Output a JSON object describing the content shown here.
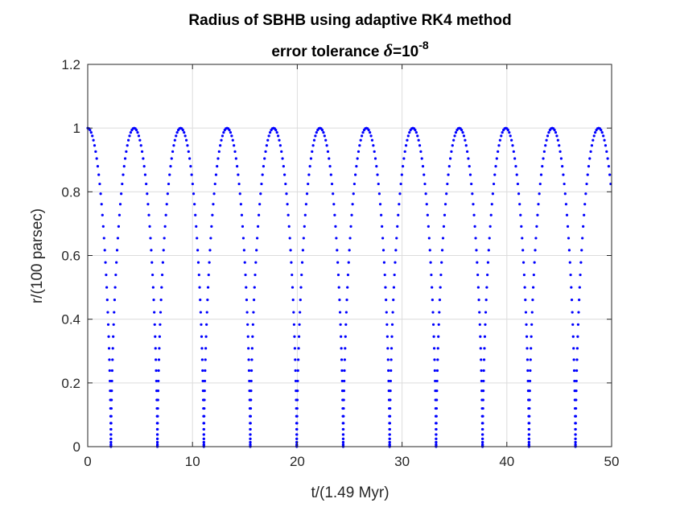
{
  "chart_data": {
    "type": "scatter",
    "title_line1": "Radius of SBHB using adaptive RK4 method",
    "title_line2_prefix": "error tolerance ",
    "title_line2_symbol": "δ",
    "title_line2_equals": "=10",
    "title_line2_exponent": "-8",
    "xlabel": "t/(1.49 Myr)",
    "ylabel": "r/(100 parsec)",
    "xlim": [
      0,
      50
    ],
    "ylim": [
      0,
      1.2
    ],
    "xticks": [
      0,
      10,
      20,
      30,
      40,
      50
    ],
    "xtick_labels": [
      "0",
      "10",
      "20",
      "30",
      "40",
      "50"
    ],
    "yticks": [
      0,
      0.2,
      0.4,
      0.6,
      0.8,
      1,
      1.2
    ],
    "ytick_labels": [
      "0",
      "0.2",
      "0.4",
      "0.6",
      "0.8",
      "1",
      "1.2"
    ],
    "grid": true,
    "series": [
      {
        "marker": "dot",
        "color": "#0000ff",
        "curve": "eccentric-orbit radius, apocenter r=1, pericenter r≈0",
        "initial_r": 1.0,
        "apocenter_r": 1.0,
        "pericenter_r": 0.0,
        "period": 4.4333,
        "pericenter_times": [
          2.22,
          6.65,
          11.08,
          15.52,
          19.95,
          24.38,
          28.82,
          33.25,
          37.68,
          42.12,
          46.55
        ],
        "apocenter_times": [
          0,
          4.43,
          8.87,
          13.3,
          17.73,
          22.17,
          26.6,
          31.03,
          35.47,
          39.9,
          44.33,
          48.77
        ],
        "final_point": [
          50,
          0.85
        ]
      }
    ]
  }
}
